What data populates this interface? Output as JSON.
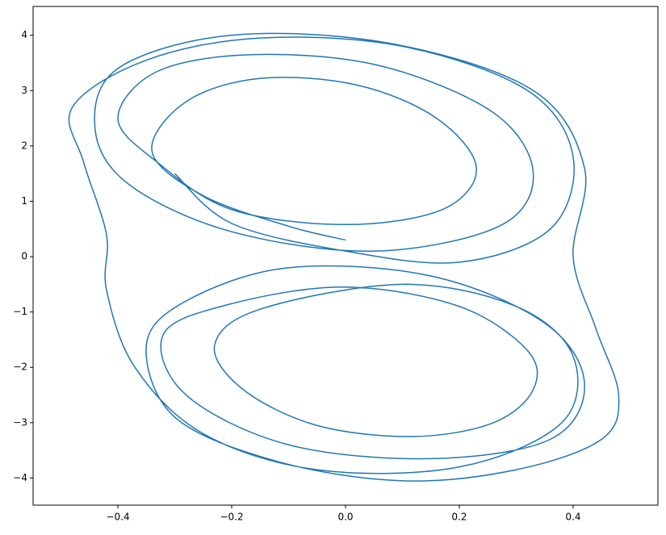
{
  "chart_data": {
    "type": "line",
    "x": [
      0.0,
      -0.1,
      -0.25,
      -0.34,
      -0.28,
      -0.15,
      0.02,
      0.16,
      0.23,
      0.17,
      0.0,
      -0.2,
      -0.33,
      -0.4,
      -0.33,
      -0.16,
      0.06,
      0.26,
      0.33,
      0.27,
      0.05,
      -0.2,
      -0.38,
      -0.44,
      -0.4,
      -0.2,
      0.08,
      0.33,
      0.42,
      0.4,
      0.44,
      0.48,
      0.45,
      0.3,
      0.1,
      -0.12,
      -0.3,
      -0.35,
      -0.28,
      -0.1,
      0.15,
      0.35,
      0.42,
      0.36,
      0.15,
      -0.1,
      -0.28,
      -0.32,
      -0.2,
      0.0,
      0.2,
      0.32,
      0.33,
      0.26,
      0.12,
      -0.05,
      -0.18,
      -0.23,
      -0.15,
      0.1,
      0.3,
      0.4,
      0.38,
      0.2,
      -0.05,
      -0.25,
      -0.37,
      -0.42,
      -0.42,
      -0.46,
      -0.48,
      -0.35,
      -0.15,
      0.1,
      0.32,
      0.4,
      0.36,
      0.2,
      0.0,
      -0.2,
      -0.3
    ],
    "values": [
      0.3,
      0.55,
      1.1,
      1.9,
      2.8,
      3.22,
      3.1,
      2.5,
      1.6,
      0.85,
      0.58,
      0.85,
      1.7,
      2.5,
      3.35,
      3.65,
      3.45,
      2.6,
      1.5,
      0.55,
      0.1,
      0.45,
      1.3,
      2.3,
      3.4,
      4.0,
      3.85,
      3.0,
      1.6,
      0.0,
      -1.3,
      -2.5,
      -3.3,
      -3.85,
      -4.05,
      -3.7,
      -2.9,
      -1.6,
      -0.8,
      -0.2,
      -0.35,
      -1.2,
      -2.3,
      -3.3,
      -3.65,
      -3.4,
      -2.5,
      -1.4,
      -0.85,
      -0.55,
      -0.9,
      -1.7,
      -2.4,
      -3.0,
      -3.25,
      -3.05,
      -2.4,
      -1.6,
      -0.95,
      -0.5,
      -0.9,
      -1.8,
      -3.0,
      -3.8,
      -3.85,
      -3.2,
      -2.0,
      -0.6,
      0.4,
      1.7,
      2.7,
      3.55,
      3.95,
      3.8,
      3.0,
      1.8,
      0.5,
      -0.1,
      0.1,
      0.6,
      1.5
    ],
    "color": "#1f77b4",
    "xlim": [
      -0.549,
      0.549
    ],
    "ylim": [
      -4.49,
      4.52
    ],
    "xticks": [
      {
        "value": -0.4,
        "label": "−0.4"
      },
      {
        "value": -0.2,
        "label": "−0.2"
      },
      {
        "value": 0,
        "label": "0.0"
      },
      0.2,
      0.4
    ],
    "yticks": [
      {
        "value": -4,
        "label": "−4"
      },
      {
        "value": -3,
        "label": "−3"
      },
      {
        "value": -2,
        "label": "−2"
      },
      {
        "value": -1,
        "label": "−1"
      },
      0,
      1,
      2,
      3,
      4
    ]
  }
}
